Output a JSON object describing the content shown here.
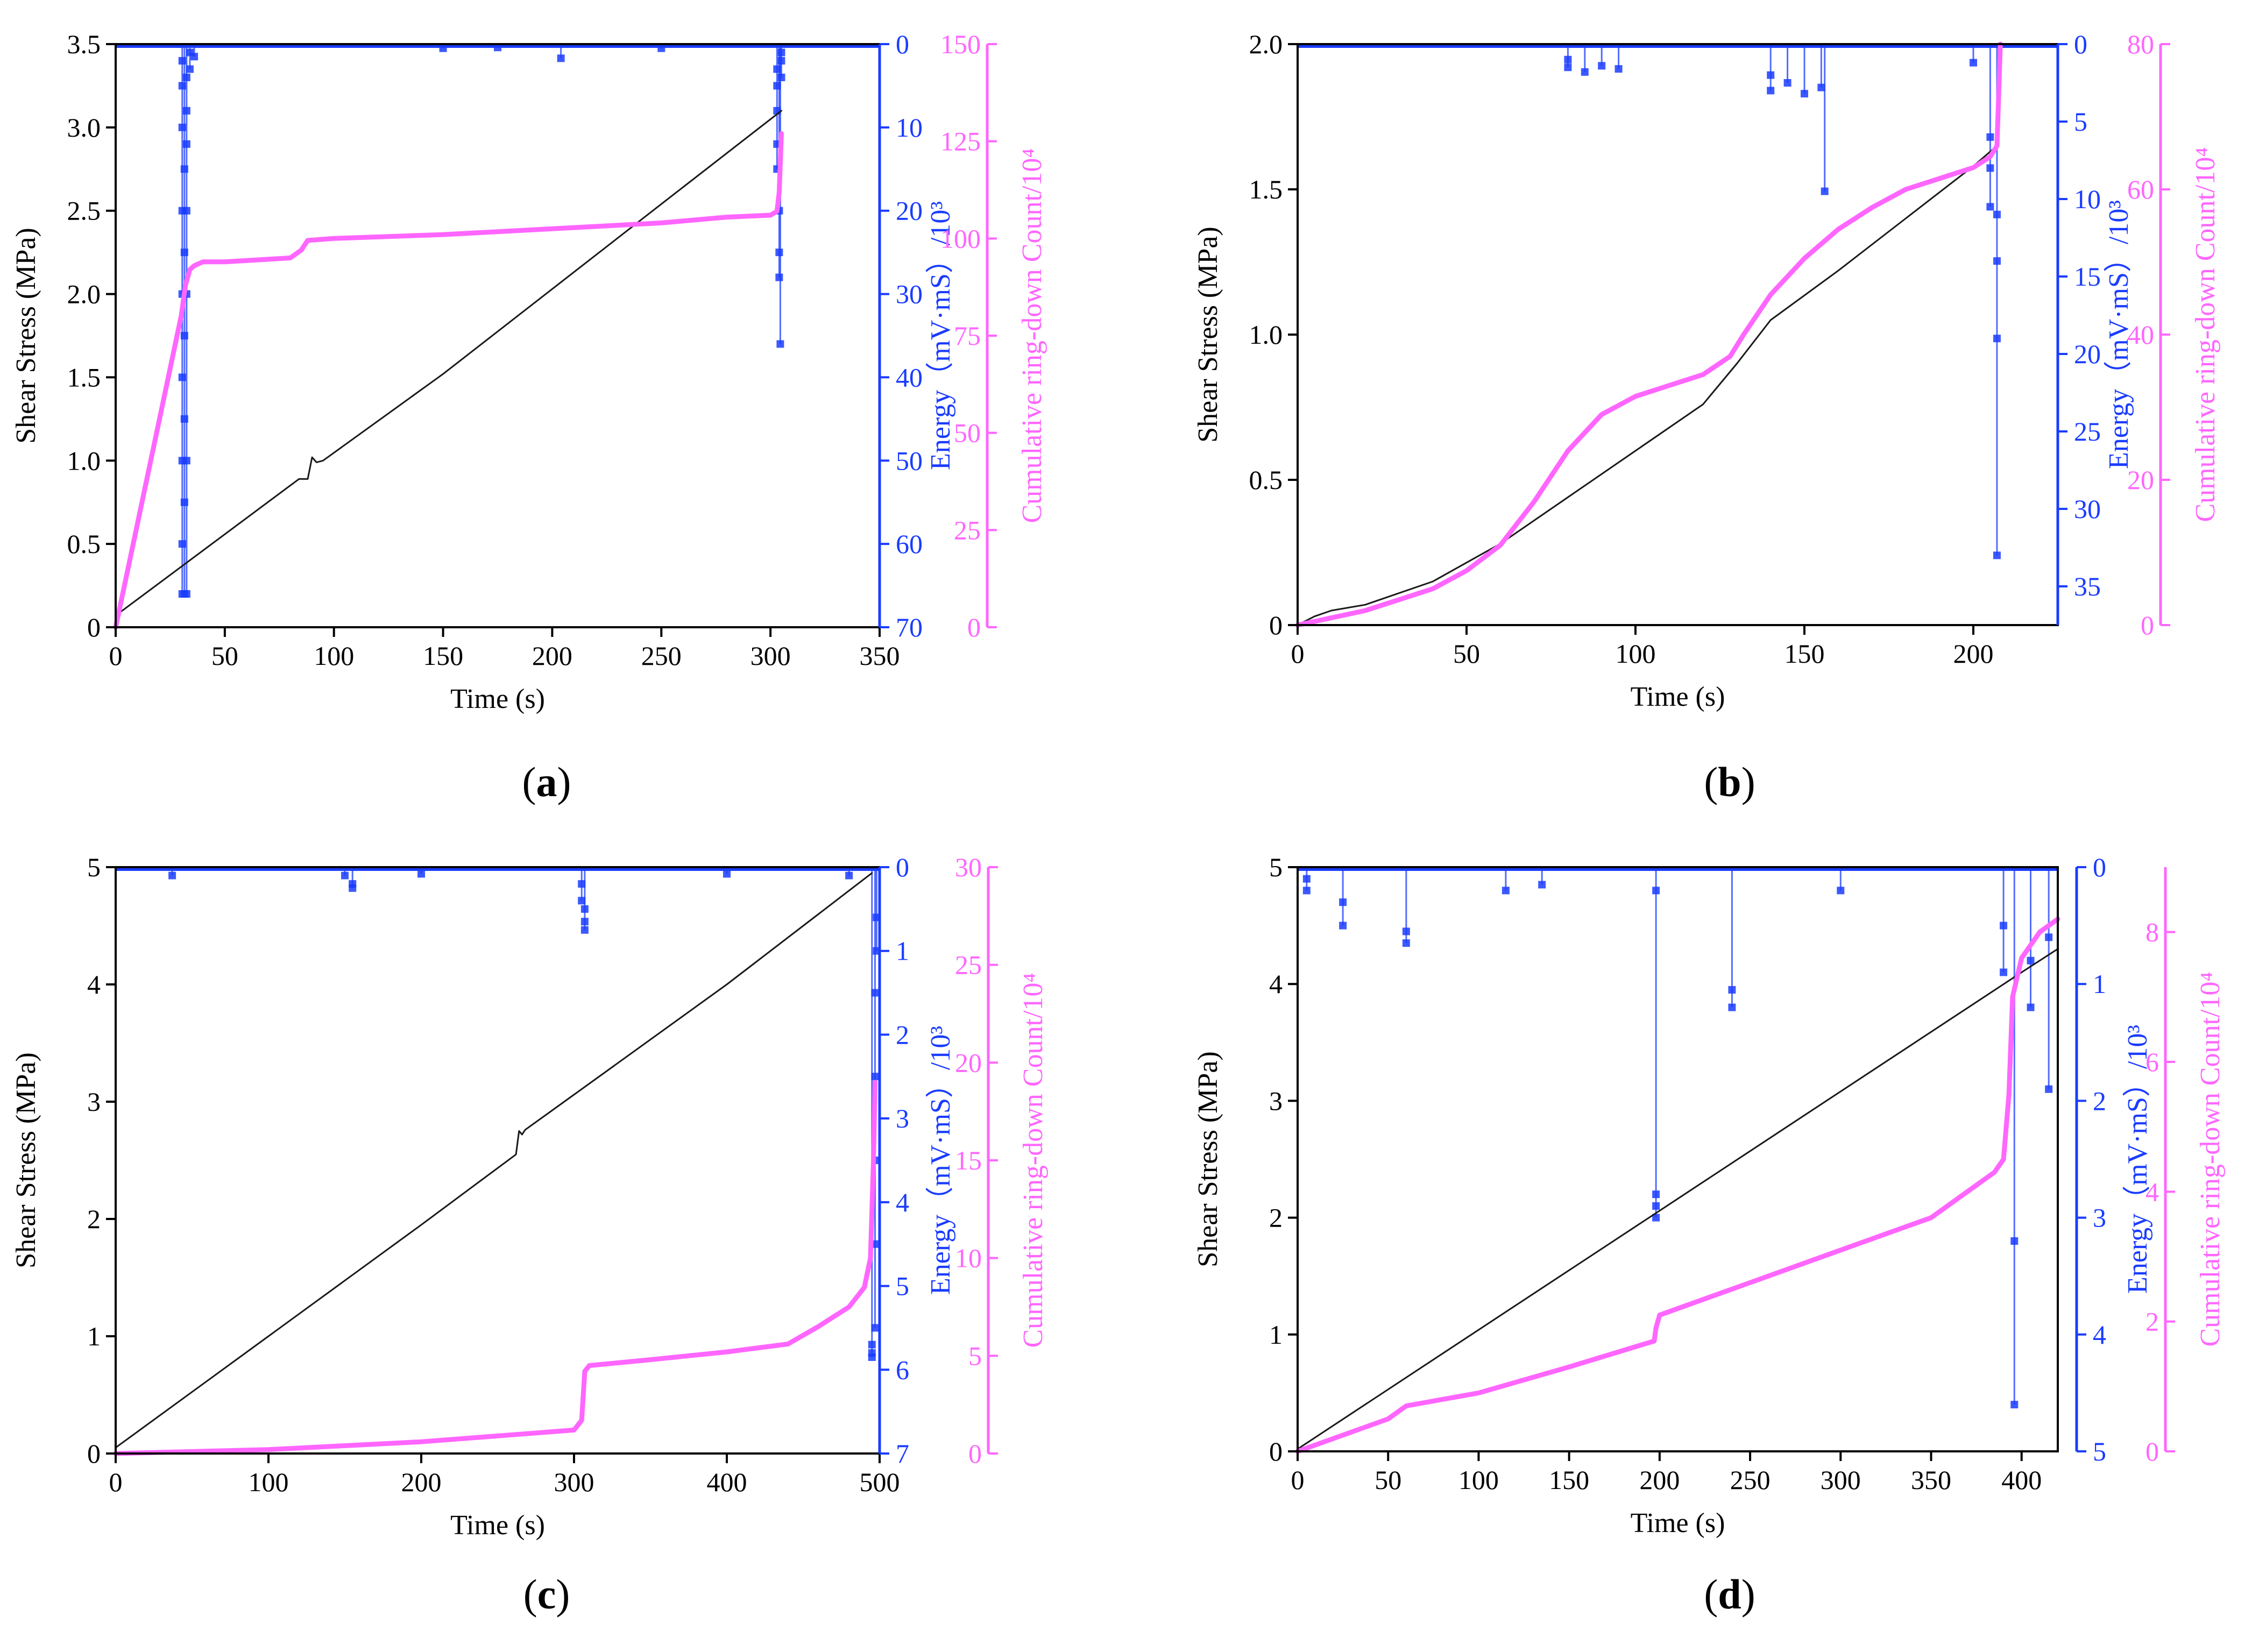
{
  "figure": {
    "colors": {
      "stress": "#1a1a1a",
      "energy": "#1a3cff",
      "count": "#ff66ff",
      "axis": "#000000"
    }
  },
  "chart_data": [
    {
      "id": "a",
      "type": "line",
      "panel_label": {
        "prefix": "(",
        "letter": "a",
        "suffix": ")"
      },
      "xlabel": "Time (s)",
      "xlim": [
        0,
        350
      ],
      "xticks": [
        0,
        50,
        100,
        150,
        200,
        250,
        300,
        350
      ],
      "ylabel_left": "Shear Stress (MPa)",
      "ylim_left": [
        0,
        3.5
      ],
      "yticks_left": [
        0,
        0.5,
        1.0,
        1.5,
        2.0,
        2.5,
        3.0,
        3.5
      ],
      "ytick_labels_left": [
        "0",
        "0.5",
        "1.0",
        "1.5",
        "2.0",
        "2.5",
        "3.0",
        "3.5"
      ],
      "ylabel_energy": "Energy（mV·mS）/10³",
      "ylim_energy_inverted": [
        0,
        70
      ],
      "yticks_energy": [
        0,
        10,
        20,
        30,
        40,
        50,
        60,
        70
      ],
      "ylabel_count": "Cumulative ring-down Count/10⁴",
      "ylim_count": [
        0,
        150
      ],
      "yticks_count": [
        0,
        25,
        50,
        75,
        100,
        125,
        150
      ],
      "series": [
        {
          "name": "Shear stress",
          "axis": "left",
          "color": "#1a1a1a",
          "x": [
            0,
            84,
            88,
            90,
            92,
            95,
            150,
            200,
            250,
            305
          ],
          "y": [
            0.07,
            0.89,
            0.89,
            1.02,
            0.99,
            1.0,
            1.52,
            2.03,
            2.54,
            3.1
          ]
        },
        {
          "name": "Cumulative ring-down count",
          "axis": "count",
          "color": "#ff66ff",
          "x": [
            0,
            30,
            32,
            34,
            36,
            40,
            50,
            80,
            85,
            88,
            100,
            150,
            200,
            250,
            280,
            300,
            303,
            304,
            305
          ],
          "y": [
            0,
            80,
            88,
            92,
            93,
            94,
            94,
            95,
            97,
            99.5,
            100,
            101,
            102.5,
            104,
            105.5,
            106,
            107,
            112,
            127
          ]
        }
      ],
      "energy_events": [
        {
          "x": 30.5,
          "values": [
            66,
            60,
            50,
            40,
            30,
            20,
            10,
            5,
            2
          ]
        },
        {
          "x": 31.5,
          "values": [
            66,
            55,
            45,
            35,
            25,
            15
          ]
        },
        {
          "x": 32.5,
          "values": [
            66,
            50,
            30,
            20,
            12,
            8,
            4
          ]
        },
        {
          "x": 34,
          "values": [
            3,
            1
          ]
        },
        {
          "x": 36,
          "values": [
            1.5
          ]
        },
        {
          "x": 150,
          "values": [
            0.5
          ]
        },
        {
          "x": 175,
          "values": [
            0.4
          ]
        },
        {
          "x": 204,
          "values": [
            1.7
          ]
        },
        {
          "x": 250,
          "values": [
            0.5
          ]
        },
        {
          "x": 303,
          "values": [
            3,
            5,
            8,
            12,
            15
          ]
        },
        {
          "x": 304,
          "values": [
            20,
            25,
            28
          ]
        },
        {
          "x": 304.5,
          "values": [
            36
          ]
        },
        {
          "x": 305,
          "values": [
            1,
            2,
            4
          ]
        }
      ]
    },
    {
      "id": "b",
      "type": "line",
      "panel_label": {
        "prefix": "(",
        "letter": "b",
        "suffix": ")"
      },
      "xlabel": "Time (s)",
      "xlim": [
        0,
        225
      ],
      "xticks": [
        0,
        50,
        100,
        150,
        200
      ],
      "ylabel_left": "Shear Stress (MPa)",
      "ylim_left": [
        0,
        2.0
      ],
      "yticks_left": [
        0,
        0.5,
        1.0,
        1.5,
        2.0
      ],
      "ytick_labels_left": [
        "0",
        "0.5",
        "1.0",
        "1.5",
        "2.0"
      ],
      "ylabel_energy": "Energy（mV·mS）/10³",
      "ylim_energy_inverted": [
        0,
        37.5
      ],
      "yticks_energy": [
        0,
        5,
        10,
        15,
        20,
        25,
        30,
        35
      ],
      "ylabel_count": "Cumulative ring-down Count/10⁴",
      "ylim_count": [
        0,
        80
      ],
      "yticks_count": [
        0,
        20,
        40,
        60,
        80
      ],
      "series": [
        {
          "name": "Shear stress",
          "axis": "left",
          "color": "#1a1a1a",
          "x": [
            0,
            5,
            10,
            20,
            40,
            60,
            80,
            100,
            120,
            130,
            140,
            160,
            180,
            200,
            207
          ],
          "y": [
            0,
            0.03,
            0.05,
            0.07,
            0.15,
            0.28,
            0.44,
            0.6,
            0.76,
            0.9,
            1.05,
            1.22,
            1.4,
            1.58,
            1.65
          ]
        },
        {
          "name": "Cumulative ring-down count",
          "axis": "count",
          "color": "#ff66ff",
          "x": [
            0,
            10,
            20,
            30,
            40,
            50,
            60,
            70,
            80,
            90,
            100,
            110,
            120,
            128,
            132,
            140,
            150,
            160,
            170,
            180,
            190,
            200,
            205,
            207,
            208
          ],
          "y": [
            0,
            1,
            2,
            3.5,
            5,
            7.5,
            11,
            17,
            24,
            29,
            31.5,
            33,
            34.5,
            37,
            40,
            45.5,
            50.5,
            54.5,
            57.5,
            60,
            61.5,
            63,
            64.5,
            66,
            80
          ]
        }
      ],
      "energy_events": [
        {
          "x": 80,
          "values": [
            1,
            1.5
          ]
        },
        {
          "x": 85,
          "values": [
            1.8
          ]
        },
        {
          "x": 90,
          "values": [
            1.4
          ]
        },
        {
          "x": 95,
          "values": [
            1.6
          ]
        },
        {
          "x": 140,
          "values": [
            2,
            3
          ]
        },
        {
          "x": 145,
          "values": [
            2.5
          ]
        },
        {
          "x": 150,
          "values": [
            3.2
          ]
        },
        {
          "x": 155,
          "values": [
            2.8
          ]
        },
        {
          "x": 156,
          "values": [
            9.5
          ]
        },
        {
          "x": 200,
          "values": [
            1.2
          ]
        },
        {
          "x": 205,
          "values": [
            6,
            8,
            10.5
          ]
        },
        {
          "x": 207,
          "values": [
            11,
            14,
            19,
            33
          ]
        }
      ]
    },
    {
      "id": "c",
      "type": "line",
      "panel_label": {
        "prefix": "(",
        "letter": "c",
        "suffix": ")"
      },
      "xlabel": "Time (s)",
      "xlim": [
        0,
        500
      ],
      "xticks": [
        0,
        100,
        200,
        300,
        400,
        500
      ],
      "ylabel_left": "Shear Stress (MPa)",
      "ylim_left": [
        0,
        5
      ],
      "yticks_left": [
        0,
        1,
        2,
        3,
        4,
        5
      ],
      "ytick_labels_left": [
        "0",
        "1",
        "2",
        "3",
        "4",
        "5"
      ],
      "ylabel_energy": "Energy（mV·mS）/10³",
      "ylim_energy_inverted": [
        0,
        7
      ],
      "yticks_energy": [
        0,
        1,
        2,
        3,
        4,
        5,
        6,
        7
      ],
      "ylabel_count": "Cumulative ring-down Count/10⁴",
      "ylim_count": [
        0,
        30
      ],
      "yticks_count": [
        0,
        5,
        10,
        15,
        20,
        25,
        30
      ],
      "series": [
        {
          "name": "Shear stress",
          "axis": "left",
          "color": "#1a1a1a",
          "x": [
            0,
            100,
            200,
            262,
            264,
            266,
            268,
            300,
            400,
            480,
            495
          ],
          "y": [
            0.05,
            1.0,
            1.95,
            2.55,
            2.75,
            2.72,
            2.76,
            3.06,
            4.0,
            4.8,
            4.95
          ]
        },
        {
          "name": "Cumulative ring-down count",
          "axis": "count",
          "color": "#ff66ff",
          "x": [
            0,
            50,
            100,
            150,
            200,
            250,
            300,
            305,
            307,
            310,
            350,
            400,
            440,
            460,
            480,
            490,
            494,
            496,
            497
          ],
          "y": [
            0,
            0.1,
            0.2,
            0.4,
            0.6,
            0.9,
            1.2,
            1.7,
            4.2,
            4.5,
            4.8,
            5.2,
            5.6,
            6.5,
            7.5,
            8.5,
            10,
            15,
            19
          ]
        }
      ],
      "energy_events": [
        {
          "x": 37,
          "values": [
            0.1
          ]
        },
        {
          "x": 150,
          "values": [
            0.1
          ]
        },
        {
          "x": 155,
          "values": [
            0.2,
            0.25
          ]
        },
        {
          "x": 200,
          "values": [
            0.08
          ]
        },
        {
          "x": 305,
          "values": [
            0.2,
            0.4
          ]
        },
        {
          "x": 307,
          "values": [
            0.5,
            0.65,
            0.75
          ]
        },
        {
          "x": 400,
          "values": [
            0.08
          ]
        },
        {
          "x": 480,
          "values": [
            0.1
          ]
        },
        {
          "x": 495,
          "values": [
            5.7,
            5.8,
            5.85
          ]
        },
        {
          "x": 497,
          "values": [
            1.5,
            2.5,
            3.5,
            4.5,
            5.5
          ]
        },
        {
          "x": 498,
          "values": [
            0.6,
            1
          ]
        }
      ]
    },
    {
      "id": "d",
      "type": "line",
      "panel_label": {
        "prefix": "(",
        "letter": "d",
        "suffix": ")"
      },
      "xlabel": "Time (s)",
      "xlim": [
        0,
        420
      ],
      "xticks": [
        0,
        50,
        100,
        150,
        200,
        250,
        300,
        350,
        400
      ],
      "ylabel_left": "Shear Stress (MPa)",
      "ylim_left": [
        0,
        5
      ],
      "yticks_left": [
        0,
        1,
        2,
        3,
        4,
        5
      ],
      "ytick_labels_left": [
        "0",
        "1",
        "2",
        "3",
        "4",
        "5"
      ],
      "ylabel_energy": "Energy（mV·mS）/10³",
      "ylim_energy_inverted": [
        0,
        5
      ],
      "yticks_energy": [
        0,
        1,
        2,
        3,
        4,
        5
      ],
      "ylabel_count": "Cumulative ring-down Count/10⁴",
      "ylim_count": [
        0,
        9
      ],
      "yticks_count": [
        0,
        2,
        4,
        6,
        8
      ],
      "series": [
        {
          "name": "Shear stress",
          "axis": "left",
          "color": "#1a1a1a",
          "x": [
            0,
            100,
            200,
            300,
            400,
            420
          ],
          "y": [
            0.02,
            1.04,
            2.06,
            3.08,
            4.1,
            4.3
          ]
        },
        {
          "name": "Cumulative ring-down count",
          "axis": "count",
          "color": "#ff66ff",
          "x": [
            0,
            30,
            50,
            60,
            100,
            150,
            197,
            198,
            200,
            220,
            250,
            300,
            350,
            370,
            385,
            390,
            393,
            395,
            400,
            410,
            420
          ],
          "y": [
            0,
            0.3,
            0.5,
            0.7,
            0.9,
            1.3,
            1.7,
            1.9,
            2.1,
            2.3,
            2.6,
            3.1,
            3.6,
            4.0,
            4.3,
            4.5,
            5.5,
            7,
            7.6,
            8.0,
            8.2
          ]
        }
      ],
      "energy_events": [
        {
          "x": 5,
          "values": [
            0.1,
            0.2
          ]
        },
        {
          "x": 25,
          "values": [
            0.3,
            0.5
          ]
        },
        {
          "x": 60,
          "values": [
            0.55,
            0.65
          ]
        },
        {
          "x": 115,
          "values": [
            0.2
          ]
        },
        {
          "x": 135,
          "values": [
            0.15
          ]
        },
        {
          "x": 198,
          "values": [
            0.2,
            2.8,
            2.9,
            3.0
          ]
        },
        {
          "x": 240,
          "values": [
            1.05,
            1.2
          ]
        },
        {
          "x": 300,
          "values": [
            0.2
          ]
        },
        {
          "x": 390,
          "values": [
            0.5,
            0.9
          ]
        },
        {
          "x": 396,
          "values": [
            3.2,
            4.6
          ]
        },
        {
          "x": 405,
          "values": [
            0.8,
            1.2
          ]
        },
        {
          "x": 415,
          "values": [
            1.9,
            0.6
          ]
        }
      ]
    }
  ]
}
